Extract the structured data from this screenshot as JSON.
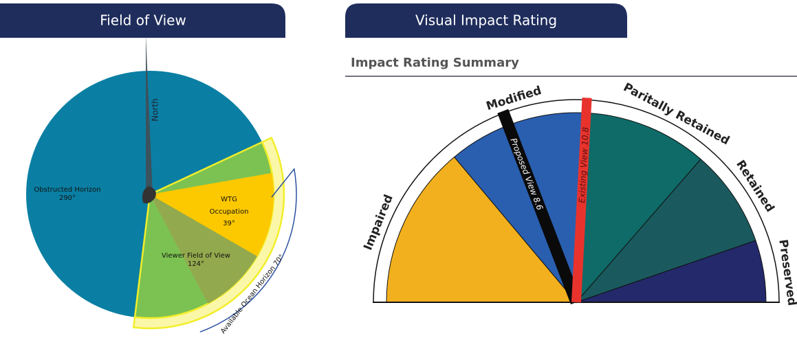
{
  "tabs": {
    "left": "Field of View",
    "right": "Visual Impact Rating"
  },
  "field_of_view": {
    "north": "North",
    "obstructed": {
      "label": "Obstructed Horizon",
      "angle": "290°"
    },
    "wtg": {
      "label_1": "WTG",
      "label_2": "Occupation",
      "angle": "39°"
    },
    "viewer": {
      "label": "Viewer Field of View",
      "angle": "124°"
    },
    "ocean": "Available Ocean Horizon 70°"
  },
  "impact": {
    "title": "Impact Rating Summary",
    "ratings": [
      "Impaired",
      "Modified",
      "Paritally Retained",
      "Retained",
      "Preserved"
    ],
    "proposed": "Proposed View 8.6",
    "existing": "Existing View 10.8"
  }
}
